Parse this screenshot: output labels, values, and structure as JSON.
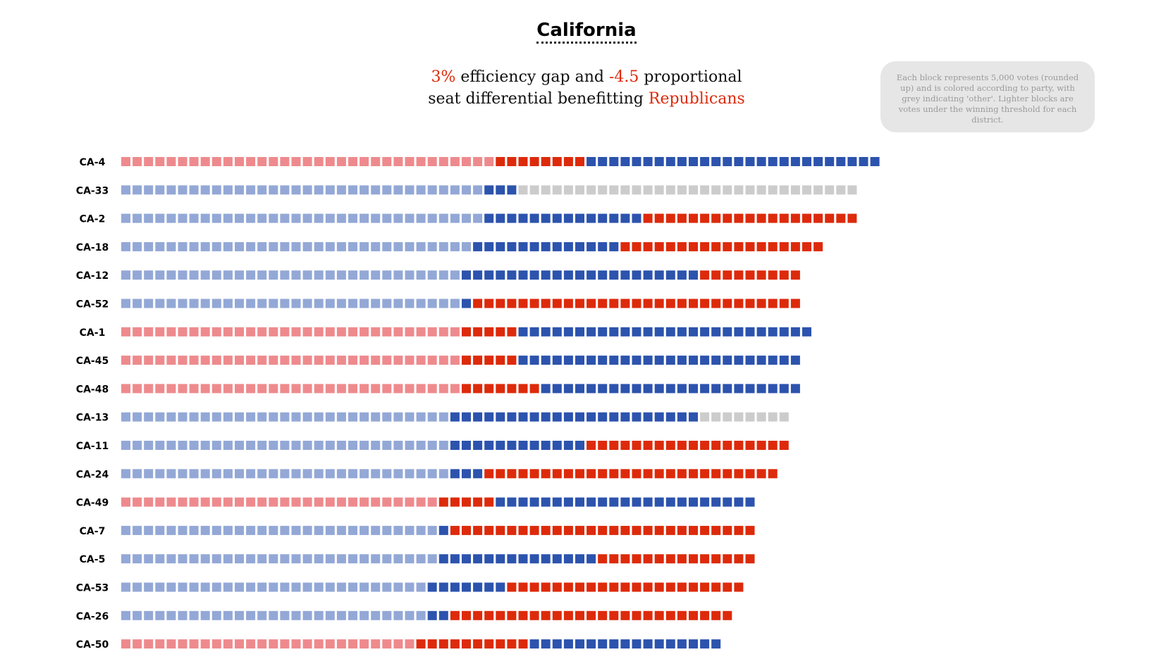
{
  "header": {
    "title": "California",
    "subtitle": {
      "line1_pre": "3%",
      "line1_mid": " efficiency gap and ",
      "line1_val": "-4.5",
      "line1_post": " proportional",
      "line2_pre": "seat differential benefitting ",
      "line2_party": "Republicans"
    }
  },
  "note": "Each block represents 5,000 votes (rounded up) and is colored according to party, with grey indicating 'other'. Lighter blocks are votes under the winning threshold for each district.",
  "colors": {
    "D": "#2c53ad",
    "R": "#dd2a0b",
    "LD": "#93a8d6",
    "LR": "#ee8a8d",
    "O": "#cccccc",
    "accent": "#dd2a0b"
  },
  "chart_data": {
    "type": "waffle-bar",
    "unit_votes": 5000,
    "rows": [
      {
        "label": "CA-4",
        "segments": [
          [
            "LR",
            33
          ],
          [
            "R",
            8
          ],
          [
            "D",
            26
          ]
        ]
      },
      {
        "label": "CA-33",
        "segments": [
          [
            "LD",
            32
          ],
          [
            "D",
            3
          ],
          [
            "O",
            30
          ]
        ]
      },
      {
        "label": "CA-2",
        "segments": [
          [
            "LD",
            32
          ],
          [
            "D",
            14
          ],
          [
            "R",
            19
          ]
        ]
      },
      {
        "label": "CA-18",
        "segments": [
          [
            "LD",
            31
          ],
          [
            "D",
            13
          ],
          [
            "R",
            18
          ]
        ]
      },
      {
        "label": "CA-12",
        "segments": [
          [
            "LD",
            30
          ],
          [
            "D",
            21
          ],
          [
            "R",
            9
          ]
        ]
      },
      {
        "label": "CA-52",
        "segments": [
          [
            "LD",
            30
          ],
          [
            "D",
            1
          ],
          [
            "R",
            29
          ]
        ]
      },
      {
        "label": "CA-1",
        "segments": [
          [
            "LR",
            30
          ],
          [
            "R",
            5
          ],
          [
            "D",
            26
          ]
        ]
      },
      {
        "label": "CA-45",
        "segments": [
          [
            "LR",
            30
          ],
          [
            "R",
            5
          ],
          [
            "D",
            25
          ]
        ]
      },
      {
        "label": "CA-48",
        "segments": [
          [
            "LR",
            30
          ],
          [
            "R",
            7
          ],
          [
            "D",
            23
          ]
        ]
      },
      {
        "label": "CA-13",
        "segments": [
          [
            "LD",
            29
          ],
          [
            "D",
            22
          ],
          [
            "O",
            8
          ]
        ]
      },
      {
        "label": "CA-11",
        "segments": [
          [
            "LD",
            29
          ],
          [
            "D",
            12
          ],
          [
            "R",
            18
          ]
        ]
      },
      {
        "label": "CA-24",
        "segments": [
          [
            "LD",
            29
          ],
          [
            "D",
            3
          ],
          [
            "R",
            26
          ]
        ]
      },
      {
        "label": "CA-49",
        "segments": [
          [
            "LR",
            28
          ],
          [
            "R",
            5
          ],
          [
            "D",
            23
          ]
        ]
      },
      {
        "label": "CA-7",
        "segments": [
          [
            "LD",
            28
          ],
          [
            "D",
            1
          ],
          [
            "R",
            27
          ]
        ]
      },
      {
        "label": "CA-5",
        "segments": [
          [
            "LD",
            28
          ],
          [
            "D",
            14
          ],
          [
            "R",
            14
          ]
        ]
      },
      {
        "label": "CA-53",
        "segments": [
          [
            "LD",
            27
          ],
          [
            "D",
            7
          ],
          [
            "R",
            21
          ]
        ]
      },
      {
        "label": "CA-26",
        "segments": [
          [
            "LD",
            27
          ],
          [
            "D",
            2
          ],
          [
            "R",
            25
          ]
        ]
      },
      {
        "label": "CA-50",
        "segments": [
          [
            "LR",
            26
          ],
          [
            "R",
            10
          ],
          [
            "D",
            17
          ]
        ]
      }
    ]
  }
}
